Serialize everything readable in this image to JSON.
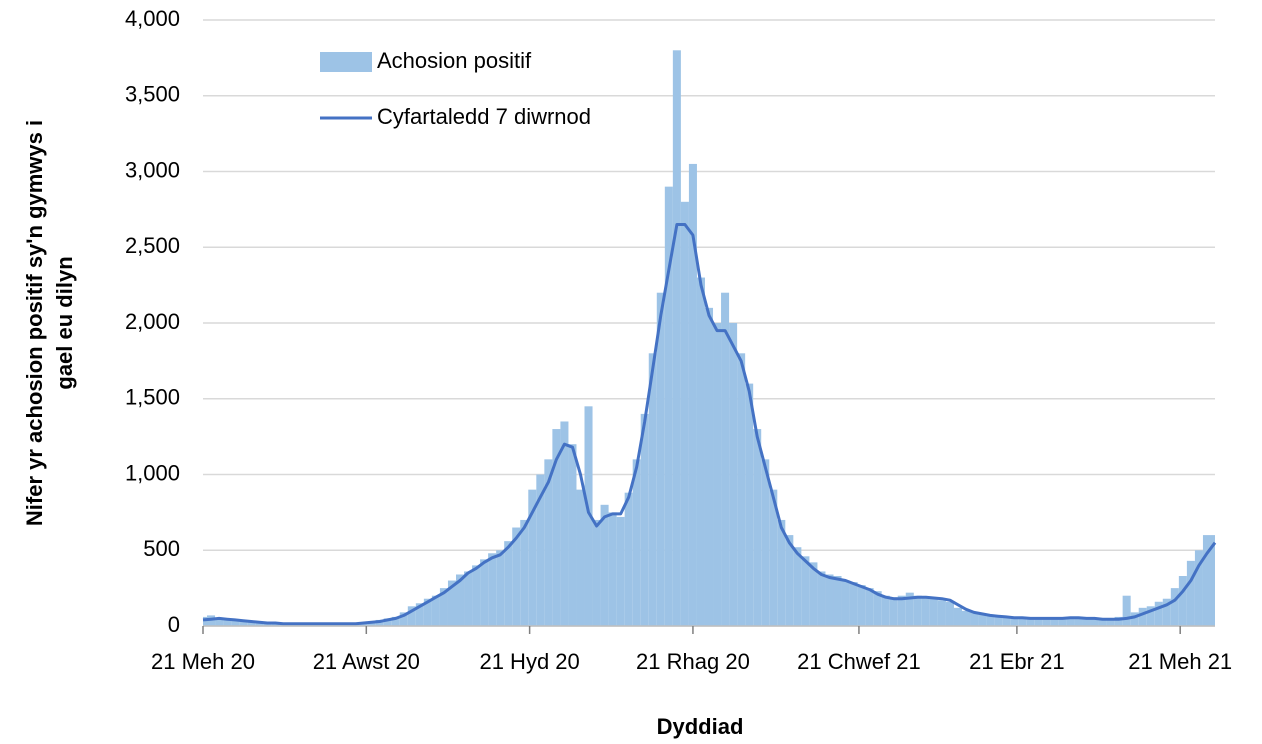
{
  "chart_data": {
    "type": "bar-line",
    "ylabel": [
      "Nifer yr achosion positif sy'n gymwys i",
      "gael eu dilyn"
    ],
    "xlabel": "Dyddiad",
    "x": [
      0,
      3,
      6,
      9,
      12,
      15,
      18,
      21,
      24,
      27,
      30,
      33,
      36,
      39,
      42,
      45,
      48,
      51,
      54,
      57,
      60,
      63,
      66,
      69,
      72,
      75,
      78,
      81,
      84,
      87,
      90,
      93,
      96,
      99,
      102,
      105,
      108,
      111,
      114,
      117,
      120,
      123,
      126,
      129,
      132,
      135,
      138,
      141,
      144,
      147,
      150,
      153,
      156,
      159,
      162,
      165,
      168,
      171,
      174,
      177,
      180,
      183,
      186,
      189,
      192,
      195,
      198,
      201,
      204,
      207,
      210,
      213,
      216,
      219,
      222,
      225,
      228,
      231,
      234,
      237,
      240,
      243,
      246,
      249,
      252,
      255,
      258,
      261,
      264,
      267,
      270,
      273,
      276,
      279,
      282,
      285,
      288,
      291,
      294,
      297,
      300,
      303,
      306,
      309,
      312,
      315,
      318,
      321,
      324,
      327,
      330,
      333,
      336,
      339,
      342,
      345,
      348,
      351,
      354,
      357,
      360,
      363,
      366,
      369,
      372,
      375,
      378
    ],
    "xlim": [
      0,
      378
    ],
    "xticks": [
      {
        "value": 0,
        "label": "21 Meh 20"
      },
      {
        "value": 61,
        "label": "21 Awst 20"
      },
      {
        "value": 122,
        "label": "21 Hyd 20"
      },
      {
        "value": 183,
        "label": "21 Rhag 20"
      },
      {
        "value": 245,
        "label": "21 Chwef 21"
      },
      {
        "value": 304,
        "label": "21 Ebr 21"
      },
      {
        "value": 365,
        "label": "21 Meh 21"
      }
    ],
    "ylim": [
      0,
      4000
    ],
    "yticks": [
      0,
      {
        "value": 500,
        "label": "500"
      },
      {
        "value": 1000,
        "label": "1,000"
      },
      {
        "value": 1500,
        "label": "1,500"
      },
      {
        "value": 2000,
        "label": "2,000"
      },
      {
        "value": 2500,
        "label": "2,500"
      },
      {
        "value": 3000,
        "label": "3,000"
      },
      {
        "value": 3500,
        "label": "3,500"
      },
      {
        "value": 4000,
        "label": "4,000"
      }
    ],
    "grid": true,
    "legend": "upper left",
    "series": [
      {
        "name": "Achosion positif",
        "kind": "bar",
        "color": "#9dc3e6",
        "values": [
          60,
          70,
          55,
          50,
          40,
          30,
          30,
          25,
          20,
          20,
          15,
          20,
          15,
          15,
          20,
          15,
          15,
          20,
          15,
          20,
          25,
          30,
          40,
          50,
          60,
          90,
          130,
          150,
          180,
          200,
          250,
          300,
          340,
          360,
          400,
          440,
          480,
          500,
          560,
          650,
          700,
          900,
          1000,
          1100,
          1300,
          1350,
          1200,
          900,
          1450,
          700,
          800,
          750,
          720,
          880,
          1100,
          1400,
          1800,
          2200,
          2900,
          3800,
          2800,
          3050,
          2300,
          2100,
          2000,
          2200,
          2000,
          1800,
          1600,
          1300,
          1100,
          900,
          700,
          600,
          520,
          460,
          420,
          360,
          340,
          330,
          300,
          290,
          270,
          250,
          230,
          200,
          190,
          200,
          220,
          200,
          190,
          180,
          170,
          160,
          120,
          100,
          90,
          80,
          70,
          60,
          60,
          55,
          55,
          50,
          50,
          55,
          50,
          55,
          60,
          55,
          50,
          50,
          45,
          50,
          60,
          200,
          90,
          120,
          130,
          160,
          180,
          250,
          330,
          430,
          500,
          600,
          600
        ]
      },
      {
        "name": "Cyfartaledd 7 diwrnod",
        "kind": "line",
        "color": "#4472c4",
        "values": [
          40,
          45,
          50,
          45,
          40,
          35,
          30,
          25,
          20,
          20,
          15,
          15,
          15,
          15,
          15,
          15,
          15,
          15,
          15,
          15,
          20,
          25,
          30,
          40,
          50,
          70,
          100,
          130,
          160,
          190,
          220,
          260,
          300,
          350,
          380,
          420,
          450,
          470,
          520,
          580,
          650,
          750,
          850,
          950,
          1100,
          1200,
          1180,
          1000,
          750,
          660,
          720,
          740,
          740,
          850,
          1050,
          1350,
          1700,
          2050,
          2350,
          2650,
          2650,
          2580,
          2250,
          2050,
          1950,
          1950,
          1850,
          1750,
          1550,
          1250,
          1050,
          850,
          650,
          550,
          480,
          430,
          380,
          340,
          320,
          310,
          300,
          280,
          260,
          240,
          210,
          190,
          180,
          180,
          185,
          190,
          190,
          185,
          180,
          170,
          140,
          110,
          90,
          80,
          70,
          65,
          60,
          55,
          55,
          50,
          50,
          50,
          50,
          50,
          55,
          55,
          50,
          50,
          45,
          45,
          45,
          50,
          60,
          80,
          100,
          120,
          140,
          170,
          230,
          300,
          400,
          480,
          550
        ]
      }
    ]
  }
}
